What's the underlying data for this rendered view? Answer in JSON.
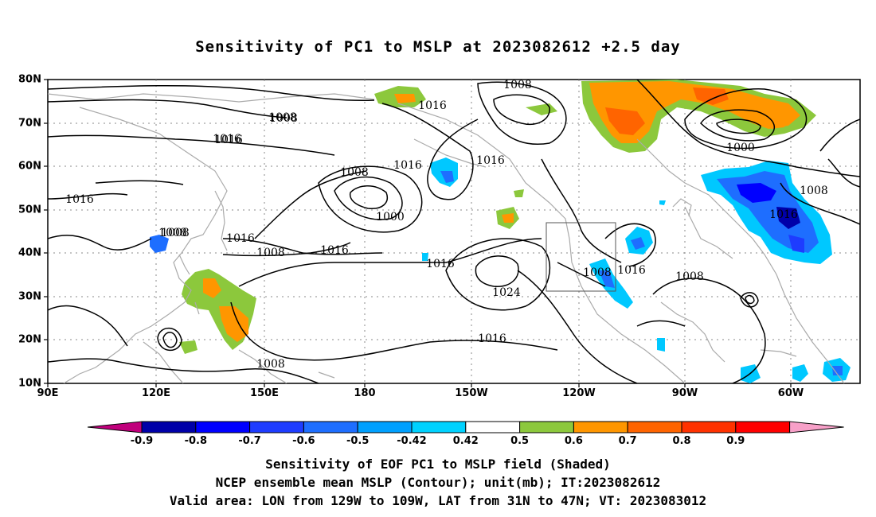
{
  "title": "Sensitivity of PC1 to MSLP at 2023082612 +2.5 day",
  "axes": {
    "lat_labels": [
      "80N",
      "70N",
      "60N",
      "50N",
      "40N",
      "30N",
      "20N",
      "10N"
    ],
    "lon_labels": [
      "90E",
      "120E",
      "150E",
      "180",
      "150W",
      "120W",
      "90W",
      "60W"
    ]
  },
  "contour_labels": [
    "1008",
    "1008",
    "1016",
    "1008",
    "1016",
    "1016",
    "1008",
    "1000",
    "1016",
    "1016",
    "1008",
    "1016",
    "1008",
    "1008",
    "1016",
    "1016",
    "1016",
    "1024",
    "1008",
    "1016",
    "1008",
    "1016",
    "1008",
    "1000",
    "1008",
    "1016"
  ],
  "colorbar": {
    "labels": [
      "-0.9",
      "-0.8",
      "-0.7",
      "-0.6",
      "-0.5",
      "-0.42",
      "0.42",
      "0.5",
      "0.6",
      "0.7",
      "0.8",
      "0.9"
    ],
    "colors": [
      "#c0007c",
      "#0000a8",
      "#0000ff",
      "#1e3cff",
      "#1e6eff",
      "#00a0ff",
      "#00d2ff",
      "#ffffff",
      "#8cc83c",
      "#ff9600",
      "#ff6400",
      "#ff3200",
      "#ff0000",
      "#f7a0c8"
    ]
  },
  "captions": {
    "line1": "Sensitivity of EOF PC1 to MSLP field (Shaded)",
    "line2": "NCEP ensemble mean MSLP (Contour); unit(mb); IT:2023082612",
    "line3": "Valid area: LON from 129W to 109W, LAT from 31N to 47N; VT: 2023083012"
  }
}
